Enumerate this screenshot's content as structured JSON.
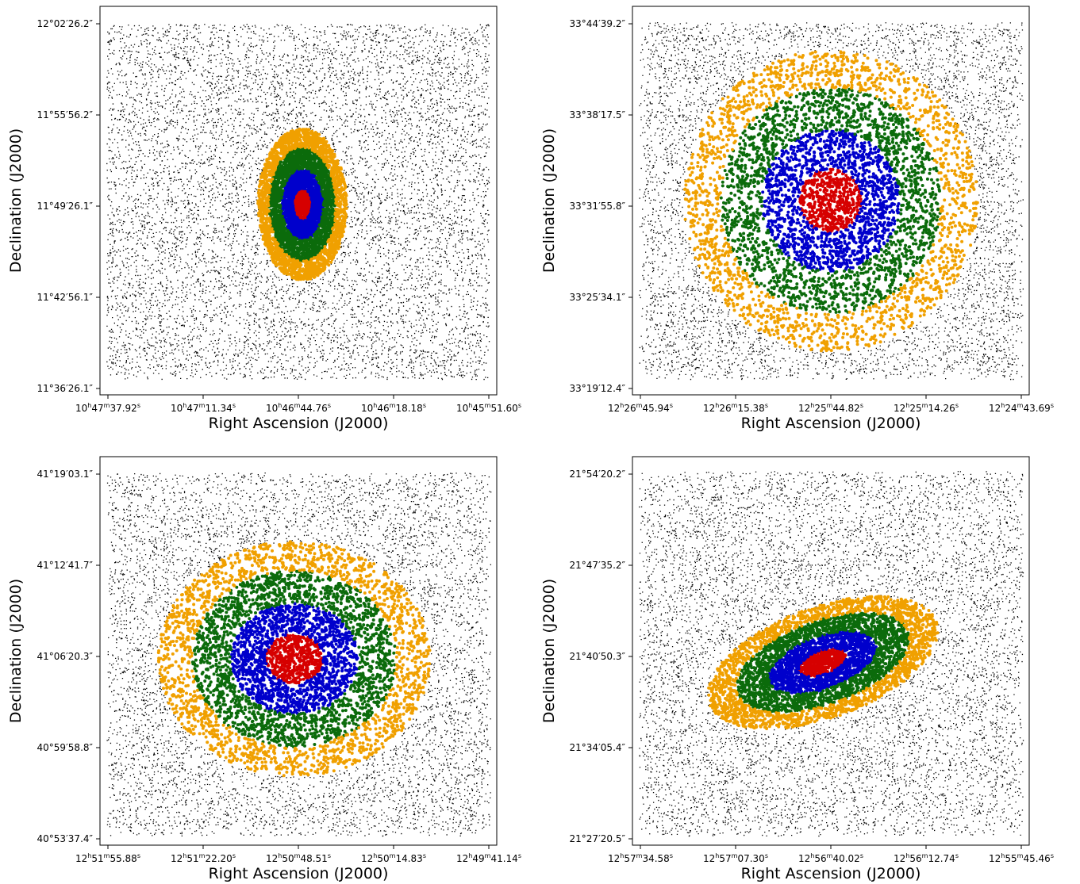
{
  "chart_data": [
    {
      "type": "scatter",
      "title": "",
      "xlabel": "Right Ascension (J2000)",
      "ylabel": "Declination (J2000)",
      "x_ticks": [
        {
          "h": "10",
          "m": "47",
          "s": "37.92"
        },
        {
          "h": "10",
          "m": "47",
          "s": "11.34"
        },
        {
          "h": "10",
          "m": "46",
          "s": "44.76"
        },
        {
          "h": "10",
          "m": "46",
          "s": "18.18"
        },
        {
          "h": "10",
          "m": "45",
          "s": "51.60"
        }
      ],
      "y_ticks": [
        {
          "d": "12",
          "m": "02",
          "s": "26.2"
        },
        {
          "d": "11",
          "m": "55",
          "s": "56.2"
        },
        {
          "d": "11",
          "m": "49",
          "s": "26.1"
        },
        {
          "d": "11",
          "m": "42",
          "s": "56.1"
        },
        {
          "d": "11",
          "m": "36",
          "s": "26.1"
        }
      ],
      "x_axis": "right ascension, decreasing to the right",
      "grid": false,
      "galaxy": {
        "center_fraction": [
          0.51,
          0.51
        ],
        "radius_x_fraction": 0.35,
        "radius_y_fraction": 0.49,
        "position_angle_deg": 0
      },
      "series": [
        {
          "color": "#000000",
          "description": "background field"
        },
        {
          "color": "#d60000",
          "description": "inner region"
        },
        {
          "color": "#0000cc",
          "description": "second ring"
        },
        {
          "color": "#0b6b0b",
          "description": "third ring"
        },
        {
          "color": "#f0a000",
          "description": "outer ring"
        }
      ]
    },
    {
      "type": "scatter",
      "title": "",
      "xlabel": "Right Ascension (J2000)",
      "ylabel": "Declination (J2000)",
      "x_ticks": [
        {
          "h": "12",
          "m": "26",
          "s": "45.94"
        },
        {
          "h": "12",
          "m": "26",
          "s": "15.38"
        },
        {
          "h": "12",
          "m": "25",
          "s": "44.82"
        },
        {
          "h": "12",
          "m": "25",
          "s": "14.26"
        },
        {
          "h": "12",
          "m": "24",
          "s": "43.69"
        }
      ],
      "y_ticks": [
        {
          "d": "33",
          "m": "44",
          "s": "39.2"
        },
        {
          "d": "33",
          "m": "38",
          "s": "17.5"
        },
        {
          "d": "33",
          "m": "31",
          "s": "55.8"
        },
        {
          "d": "33",
          "m": "25",
          "s": "34.1"
        },
        {
          "d": "33",
          "m": "19",
          "s": "12.4"
        }
      ],
      "x_axis": "right ascension, decreasing to the right",
      "grid": false,
      "galaxy": {
        "center_fraction": [
          0.5,
          0.5
        ],
        "radius_x_fraction": 1.0,
        "radius_y_fraction": 1.0,
        "position_angle_deg": 0
      },
      "series": [
        {
          "color": "#000000",
          "description": "background field"
        },
        {
          "color": "#d60000",
          "description": "inner region"
        },
        {
          "color": "#0000cc",
          "description": "second ring"
        },
        {
          "color": "#0b6b0b",
          "description": "third ring"
        },
        {
          "color": "#f0a000",
          "description": "outer ring"
        }
      ]
    },
    {
      "type": "scatter",
      "title": "",
      "xlabel": "Right Ascension (J2000)",
      "ylabel": "Declination (J2000)",
      "x_ticks": [
        {
          "h": "12",
          "m": "51",
          "s": "55.88"
        },
        {
          "h": "12",
          "m": "51",
          "s": "22.20"
        },
        {
          "h": "12",
          "m": "50",
          "s": "48.51"
        },
        {
          "h": "12",
          "m": "50",
          "s": "14.83"
        },
        {
          "h": "12",
          "m": "49",
          "s": "41.14"
        }
      ],
      "y_ticks": [
        {
          "d": "41",
          "m": "19",
          "s": "03.1"
        },
        {
          "d": "41",
          "m": "12",
          "s": "41.7"
        },
        {
          "d": "41",
          "m": "06",
          "s": "20.3"
        },
        {
          "d": "40",
          "m": "59",
          "s": "58.8"
        },
        {
          "d": "40",
          "m": "53",
          "s": "37.4"
        }
      ],
      "x_axis": "right ascension, decreasing to the right",
      "grid": false,
      "galaxy": {
        "center_fraction": [
          0.49,
          0.52
        ],
        "radius_x_fraction": 0.98,
        "radius_y_fraction": 0.78,
        "position_angle_deg": 0
      },
      "series": [
        {
          "color": "#000000",
          "description": "background field"
        },
        {
          "color": "#d60000",
          "description": "inner region"
        },
        {
          "color": "#0000cc",
          "description": "second ring"
        },
        {
          "color": "#0b6b0b",
          "description": "third ring"
        },
        {
          "color": "#f0a000",
          "description": "outer ring"
        }
      ]
    },
    {
      "type": "scatter",
      "title": "",
      "xlabel": "Right Ascension (J2000)",
      "ylabel": "Declination (J2000)",
      "x_ticks": [
        {
          "h": "12",
          "m": "57",
          "s": "34.58"
        },
        {
          "h": "12",
          "m": "57",
          "s": "07.30"
        },
        {
          "h": "12",
          "m": "56",
          "s": "40.02"
        },
        {
          "h": "12",
          "m": "56",
          "s": "12.74"
        },
        {
          "h": "12",
          "m": "55",
          "s": "45.46"
        }
      ],
      "y_ticks": [
        {
          "d": "21",
          "m": "54",
          "s": "20.2"
        },
        {
          "d": "21",
          "m": "47",
          "s": "35.2"
        },
        {
          "d": "21",
          "m": "40",
          "s": "50.3"
        },
        {
          "d": "21",
          "m": "34",
          "s": "05.4"
        },
        {
          "d": "21",
          "m": "27",
          "s": "20.5"
        }
      ],
      "x_axis": "right ascension, decreasing to the right",
      "grid": false,
      "galaxy": {
        "center_fraction": [
          0.48,
          0.53
        ],
        "radius_x_fraction": 0.78,
        "radius_y_fraction": 0.4,
        "position_angle_deg": -20
      },
      "series": [
        {
          "color": "#000000",
          "description": "background field"
        },
        {
          "color": "#d60000",
          "description": "inner region"
        },
        {
          "color": "#0000cc",
          "description": "second ring"
        },
        {
          "color": "#0b6b0b",
          "description": "third ring"
        },
        {
          "color": "#f0a000",
          "description": "outer ring"
        }
      ]
    }
  ]
}
